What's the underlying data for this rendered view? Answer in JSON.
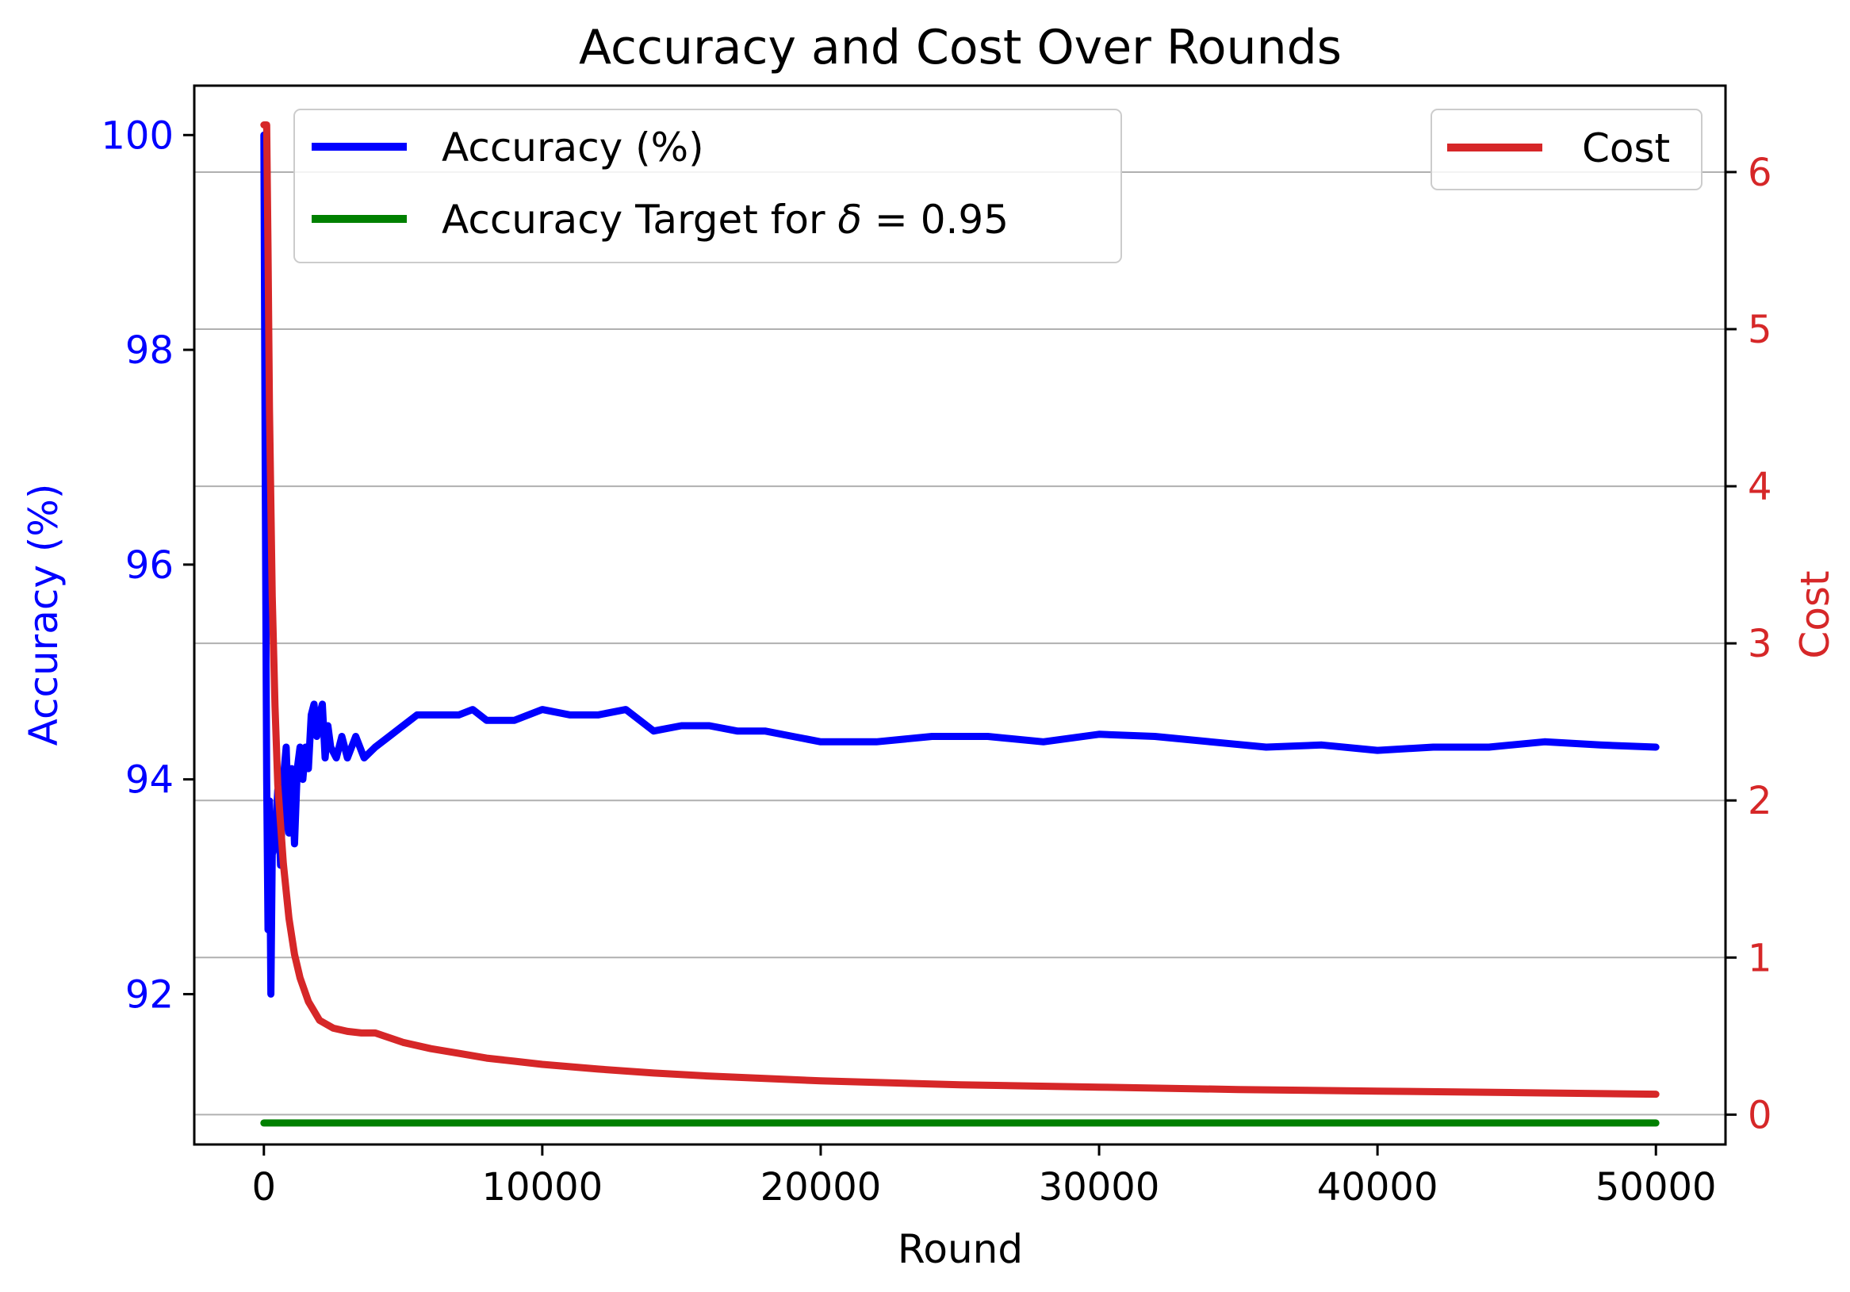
{
  "chart_data": {
    "type": "line",
    "title": "Accuracy and Cost Over Rounds",
    "xlabel": "Round",
    "xlim": [
      -2500,
      52500
    ],
    "x_ticks": [
      0,
      10000,
      20000,
      30000,
      40000,
      50000
    ],
    "x_tick_labels": [
      "0",
      "10000",
      "20000",
      "30000",
      "40000",
      "50000"
    ],
    "y_left": {
      "label": "Accuracy (%)",
      "color": "#0000ff",
      "lim": [
        90.6,
        100.46
      ],
      "ticks": [
        92,
        94,
        96,
        98,
        100
      ],
      "tick_labels": [
        "92",
        "94",
        "96",
        "98",
        "100"
      ]
    },
    "y_right": {
      "label": "Cost",
      "color": "#d62728",
      "lim": [
        -0.19,
        6.55
      ],
      "ticks": [
        0,
        1,
        2,
        3,
        4,
        5,
        6
      ],
      "tick_labels": [
        "0",
        "1",
        "2",
        "3",
        "4",
        "5",
        "6"
      ]
    },
    "grid": "horizontal (right axis)",
    "series": [
      {
        "name": "Accuracy (%)",
        "axis": "left",
        "color": "#0000ff",
        "x": [
          0,
          50,
          100,
          150,
          200,
          250,
          300,
          400,
          500,
          600,
          700,
          800,
          900,
          1000,
          1100,
          1200,
          1300,
          1400,
          1500,
          1600,
          1700,
          1800,
          1900,
          2000,
          2100,
          2200,
          2300,
          2400,
          2600,
          2800,
          3000,
          3300,
          3600,
          4000,
          4500,
          5000,
          5500,
          6000,
          6500,
          7000,
          7500,
          8000,
          9000,
          10000,
          11000,
          12000,
          13000,
          14000,
          15000,
          16000,
          17000,
          18000,
          19000,
          20000,
          22000,
          24000,
          26000,
          28000,
          30000,
          32000,
          34000,
          36000,
          38000,
          40000,
          42000,
          44000,
          46000,
          48000,
          50000
        ],
        "values": [
          100.0,
          96.8,
          94.0,
          92.6,
          93.8,
          92.0,
          93.3,
          93.4,
          93.9,
          93.2,
          94.0,
          94.3,
          93.5,
          94.1,
          93.4,
          94.1,
          94.3,
          94.0,
          94.3,
          94.1,
          94.6,
          94.7,
          94.4,
          94.6,
          94.7,
          94.2,
          94.5,
          94.3,
          94.2,
          94.4,
          94.2,
          94.4,
          94.2,
          94.3,
          94.4,
          94.5,
          94.6,
          94.6,
          94.6,
          94.6,
          94.65,
          94.55,
          94.55,
          94.65,
          94.6,
          94.6,
          94.65,
          94.45,
          94.5,
          94.5,
          94.45,
          94.45,
          94.4,
          94.35,
          94.35,
          94.4,
          94.4,
          94.35,
          94.42,
          94.4,
          94.35,
          94.3,
          94.32,
          94.27,
          94.3,
          94.3,
          94.35,
          94.32,
          94.3
        ]
      },
      {
        "name": "Cost",
        "axis": "right",
        "color": "#d62728",
        "x": [
          0,
          50,
          100,
          150,
          200,
          300,
          400,
          500,
          700,
          900,
          1100,
          1300,
          1600,
          2000,
          2500,
          3000,
          3500,
          4000,
          5000,
          6000,
          7000,
          8000,
          9000,
          10000,
          12000,
          14000,
          16000,
          18000,
          20000,
          25000,
          30000,
          35000,
          40000,
          45000,
          50000
        ],
        "values": [
          6.3,
          6.3,
          6.3,
          5.5,
          4.5,
          3.3,
          2.6,
          2.1,
          1.6,
          1.25,
          1.02,
          0.87,
          0.72,
          0.6,
          0.55,
          0.53,
          0.52,
          0.52,
          0.46,
          0.42,
          0.39,
          0.36,
          0.34,
          0.32,
          0.29,
          0.265,
          0.245,
          0.23,
          0.215,
          0.19,
          0.175,
          0.16,
          0.15,
          0.14,
          0.13
        ]
      },
      {
        "name": "Accuracy Target for δ = 0.95",
        "axis": "left",
        "color": "#008000",
        "x": [
          0,
          50000
        ],
        "values": [
          90.8,
          90.8
        ]
      }
    ],
    "legend": [
      {
        "position": "top-left",
        "entries": [
          "Accuracy (%)",
          "Accuracy Target for δ = 0.95"
        ]
      },
      {
        "position": "top-right",
        "entries": [
          "Cost"
        ]
      }
    ],
    "legend_left_entries": {
      "accuracy": "Accuracy (%)",
      "target_prefix": "Accuracy Target for",
      "target_symbol": "δ",
      "target_expr": "= 0.95"
    },
    "legend_right_entries": {
      "cost": "Cost"
    }
  }
}
